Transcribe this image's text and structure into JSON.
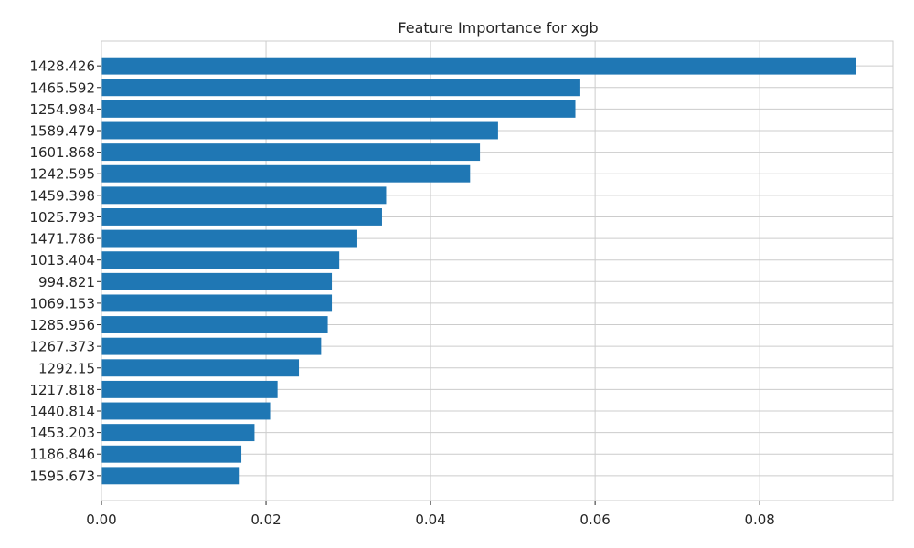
{
  "chart_data": {
    "type": "bar",
    "orientation": "horizontal",
    "title": "Feature Importance for xgb",
    "xlabel": "",
    "ylabel": "",
    "categories": [
      "1428.426",
      "1465.592",
      "1254.984",
      "1589.479",
      "1601.868",
      "1242.595",
      "1459.398",
      "1025.793",
      "1471.786",
      "1013.404",
      "994.821",
      "1069.153",
      "1285.956",
      "1267.373",
      "1292.15",
      "1217.818",
      "1440.814",
      "1453.203",
      "1186.846",
      "1595.673"
    ],
    "values": [
      0.0917,
      0.0582,
      0.0576,
      0.0482,
      0.046,
      0.0448,
      0.0346,
      0.0341,
      0.0311,
      0.0289,
      0.028,
      0.028,
      0.0275,
      0.0267,
      0.024,
      0.0214,
      0.0205,
      0.0186,
      0.017,
      0.0168
    ],
    "xlim": [
      0,
      0.0962
    ],
    "xticks": [
      0.0,
      0.02,
      0.04,
      0.06,
      0.08
    ],
    "xtick_labels": [
      "0.00",
      "0.02",
      "0.04",
      "0.06",
      "0.08"
    ],
    "grid": true,
    "bar_color": "#1f77b4",
    "grid_color": "#cccccc",
    "spine_color": "#cccccc",
    "text_color": "#262626"
  }
}
